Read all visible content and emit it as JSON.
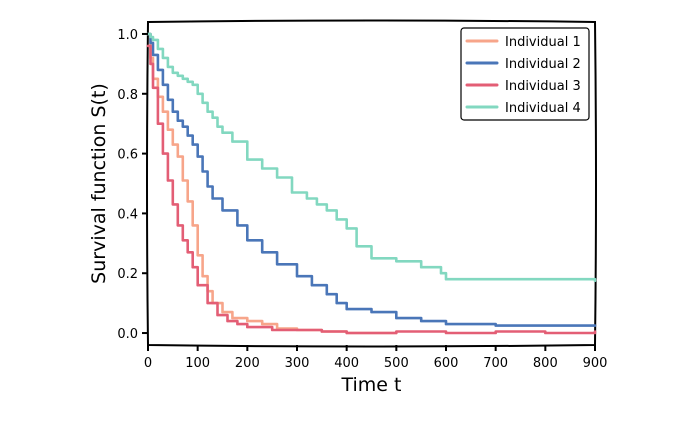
{
  "chart_data": {
    "type": "line",
    "style": "step, hand-drawn (xkcd)",
    "title": "",
    "xlabel": "Time t",
    "ylabel": "Survival function S(t)",
    "xlim": [
      0,
      900
    ],
    "ylim": [
      -0.04,
      1.04
    ],
    "xticks": [
      0,
      100,
      200,
      300,
      400,
      500,
      600,
      700,
      800,
      900
    ],
    "xtick_labels": [
      "0",
      "100",
      "200",
      "300",
      "400",
      "500",
      "600",
      "700",
      "800",
      "900"
    ],
    "yticks": [
      0.0,
      0.2,
      0.4,
      0.6,
      0.8,
      1.0
    ],
    "ytick_labels": [
      "0.0",
      "0.2",
      "0.4",
      "0.6",
      "0.8",
      "1.0"
    ],
    "grid": false,
    "legend_position": "top-right",
    "series": [
      {
        "name": "Individual 1",
        "color": "#f7a58a",
        "x": [
          0,
          5,
          10,
          20,
          30,
          40,
          50,
          60,
          70,
          80,
          90,
          100,
          110,
          120,
          130,
          150,
          170,
          200,
          230,
          260,
          300,
          350,
          400,
          450,
          500
        ],
        "y": [
          1.0,
          0.92,
          0.85,
          0.79,
          0.74,
          0.68,
          0.63,
          0.59,
          0.51,
          0.44,
          0.36,
          0.26,
          0.19,
          0.14,
          0.1,
          0.07,
          0.05,
          0.04,
          0.03,
          0.015,
          0.01,
          0.005,
          0.0,
          0.0,
          0.0
        ]
      },
      {
        "name": "Individual 2",
        "color": "#4a76b8",
        "x": [
          0,
          5,
          10,
          20,
          30,
          40,
          50,
          60,
          70,
          80,
          90,
          100,
          110,
          120,
          130,
          150,
          180,
          200,
          230,
          260,
          300,
          330,
          360,
          380,
          400,
          450,
          500,
          550,
          600,
          700,
          800,
          900
        ],
        "y": [
          1.0,
          0.97,
          0.93,
          0.88,
          0.83,
          0.78,
          0.74,
          0.71,
          0.69,
          0.66,
          0.63,
          0.59,
          0.54,
          0.49,
          0.45,
          0.41,
          0.36,
          0.31,
          0.27,
          0.23,
          0.19,
          0.16,
          0.13,
          0.1,
          0.08,
          0.07,
          0.05,
          0.04,
          0.03,
          0.025,
          0.025,
          0.025
        ]
      },
      {
        "name": "Individual 3",
        "color": "#e35e75",
        "x": [
          0,
          5,
          10,
          20,
          30,
          40,
          50,
          60,
          70,
          80,
          90,
          100,
          120,
          140,
          160,
          180,
          200,
          250,
          300,
          350,
          400,
          500,
          600,
          700,
          800,
          900
        ],
        "y": [
          0.96,
          0.9,
          0.82,
          0.7,
          0.6,
          0.51,
          0.43,
          0.36,
          0.31,
          0.27,
          0.22,
          0.16,
          0.1,
          0.06,
          0.04,
          0.03,
          0.02,
          0.01,
          0.01,
          0.005,
          0.0,
          0.005,
          0.0,
          0.005,
          0.0,
          0.005
        ]
      },
      {
        "name": "Individual 4",
        "color": "#82d8c0",
        "x": [
          0,
          5,
          10,
          20,
          30,
          40,
          50,
          60,
          70,
          80,
          90,
          100,
          110,
          120,
          130,
          140,
          150,
          170,
          200,
          230,
          260,
          290,
          320,
          340,
          360,
          380,
          400,
          420,
          450,
          500,
          550,
          590,
          600,
          650,
          700,
          800,
          900
        ],
        "y": [
          1.0,
          0.99,
          0.98,
          0.95,
          0.92,
          0.89,
          0.87,
          0.86,
          0.85,
          0.84,
          0.83,
          0.8,
          0.77,
          0.74,
          0.72,
          0.69,
          0.67,
          0.64,
          0.58,
          0.55,
          0.52,
          0.47,
          0.45,
          0.43,
          0.41,
          0.38,
          0.35,
          0.29,
          0.25,
          0.24,
          0.22,
          0.2,
          0.18,
          0.18,
          0.18,
          0.18,
          0.175
        ]
      }
    ]
  }
}
